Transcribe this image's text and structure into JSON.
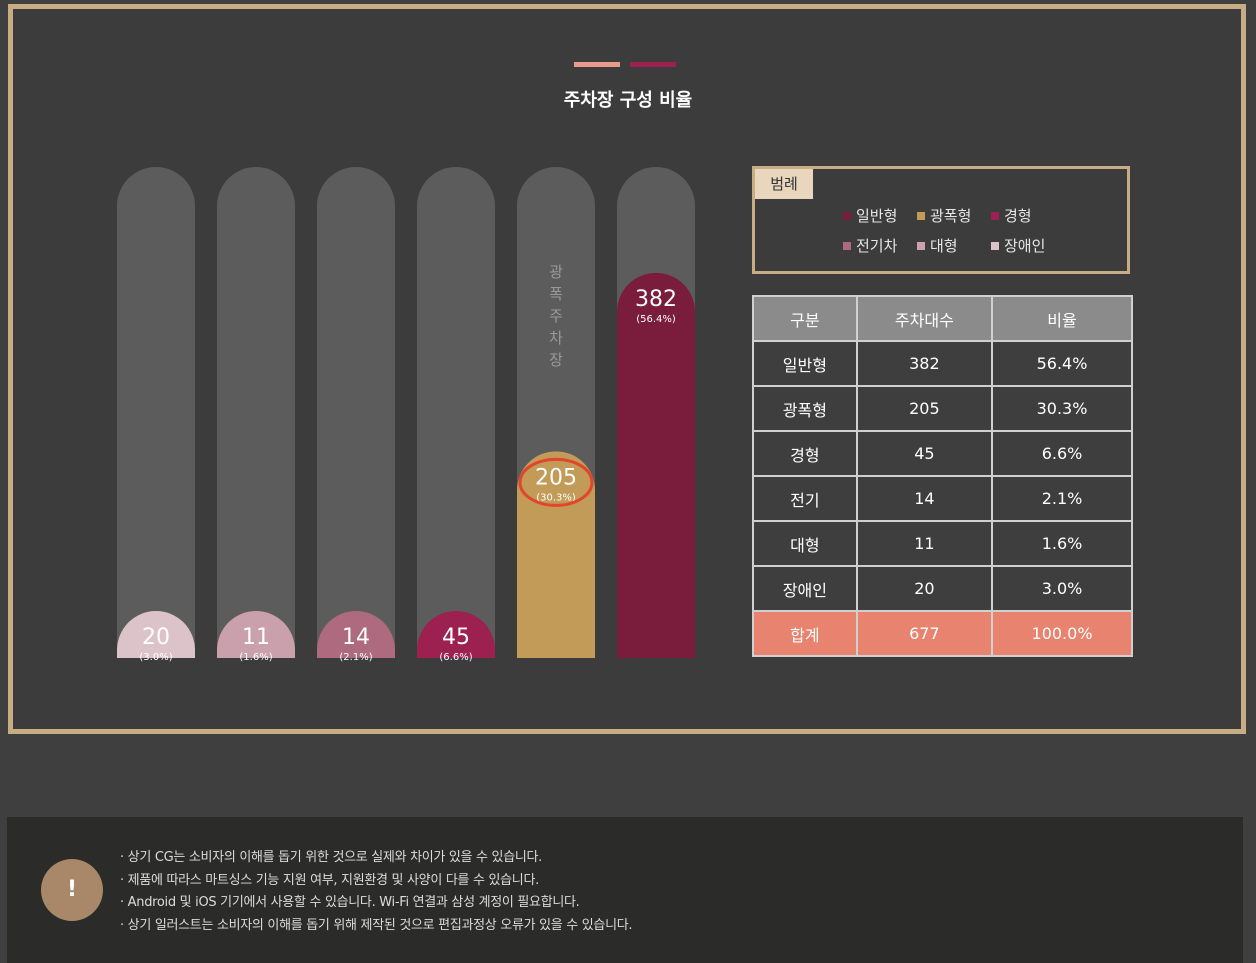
{
  "colors": {
    "frame": "#c8ad84",
    "deco_left": "#e89a8c",
    "deco_right": "#9c2050",
    "track": "#5c5c5c",
    "highlight_circle": "#e2452d"
  },
  "title": "주차장 구성 비율",
  "legend": {
    "label": "범례",
    "items": [
      {
        "name": "일반형",
        "color": "#7a1c3c"
      },
      {
        "name": "광폭형",
        "color": "#c29b58"
      },
      {
        "name": "경형",
        "color": "#9c2050"
      },
      {
        "name": "전기차",
        "color": "#ae6a7e"
      },
      {
        "name": "대형",
        "color": "#c9a0ac"
      },
      {
        "name": "장애인",
        "color": "#dcc2c9"
      }
    ]
  },
  "chart_data": {
    "type": "bar",
    "title": "",
    "xlabel": "",
    "ylabel": "",
    "ylim": [
      0,
      487
    ],
    "grid": false,
    "legend_position": "right",
    "categories": [
      "장애인",
      "대형",
      "전기",
      "경형",
      "광폭형",
      "일반형"
    ],
    "values": [
      20,
      11,
      14,
      45,
      205,
      382
    ],
    "data_labels": [
      "20",
      "11",
      "14",
      "45",
      "205",
      "382"
    ],
    "percent_labels": [
      "(3.0%)",
      "(1.6%)",
      "(2.1%)",
      "(6.6%)",
      "(30.3%)",
      "(56.4%)"
    ],
    "colors": [
      "#dcc2c9",
      "#c9a0ac",
      "#ae6a7e",
      "#9c2050",
      "#c29b58",
      "#7a1c3c"
    ],
    "highlight_index": 4,
    "annotation": {
      "bar_index": 4,
      "text": "광폭주차장"
    }
  },
  "table": {
    "headers": [
      "구분",
      "주차대수",
      "비율"
    ],
    "rows": [
      [
        "일반형",
        "382",
        "56.4%"
      ],
      [
        "광폭형",
        "205",
        "30.3%"
      ],
      [
        "경형",
        "45",
        "6.6%"
      ],
      [
        "전기",
        "14",
        "2.1%"
      ],
      [
        "대형",
        "11",
        "1.6%"
      ],
      [
        "장애인",
        "20",
        "3.0%"
      ]
    ],
    "total": [
      "합계",
      "677",
      "100.0%"
    ]
  },
  "notice": {
    "icon": "!",
    "lines": [
      "· 상기 CG는 소비자의 이해를 돕기 위한 것으로 실제와 차이가 있을 수 있습니다.",
      "· 제품에 따라스 마트싱스 기능 지원 여부, 지원환경 및 사양이 다를 수 있습니다.",
      "· Android 및 iOS 기기에서 사용할 수 있습니다. Wi-Fi 연결과 삼성 계정이 필요합니다.",
      "· 상기 일러스트는 소비자의 이해를 돕기 위해 제작된 것으로 편집과정상 오류가 있을 수 있습니다."
    ]
  }
}
